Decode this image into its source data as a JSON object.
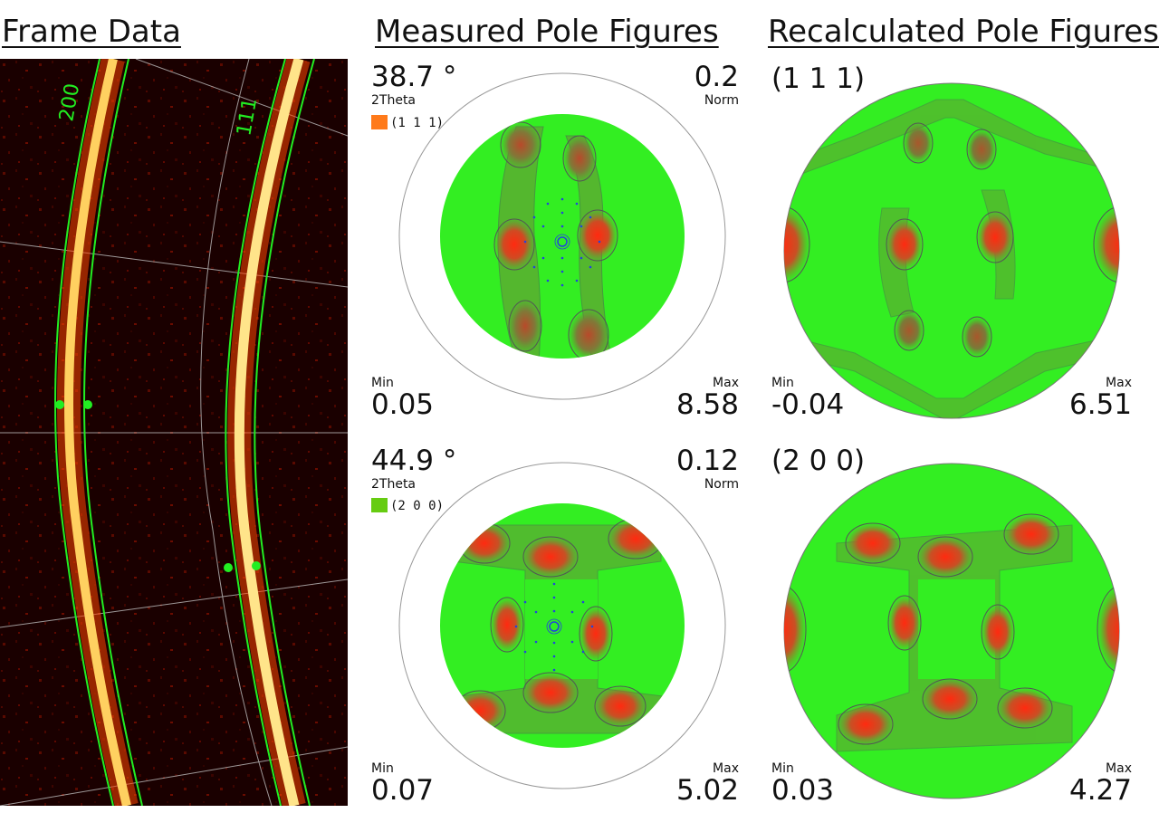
{
  "headings": {
    "frame": "Frame Data",
    "measured": "Measured Pole Figures",
    "recalculated": "Recalculated Pole Figures"
  },
  "frame": {
    "ring_labels": [
      "200",
      "111"
    ],
    "colors": {
      "background": "#1a0000",
      "ring": "#ffe070",
      "boundary": "#22ee22",
      "grid": "#bfbfbf"
    }
  },
  "measured": [
    {
      "two_theta": "38.7 °",
      "two_theta_label": "2Theta",
      "norm_value": "0.2",
      "norm_label": "Norm",
      "legend": "(1 1 1)",
      "legend_color": "#ff7a1a",
      "min_label": "Min",
      "min": "0.05",
      "max_label": "Max",
      "max": "8.58"
    },
    {
      "two_theta": "44.9 °",
      "two_theta_label": "2Theta",
      "norm_value": "0.12",
      "norm_label": "Norm",
      "legend": "(2 0 0)",
      "legend_color": "#66cc11",
      "min_label": "Min",
      "min": "0.07",
      "max_label": "Max",
      "max": "5.02"
    }
  ],
  "recalculated": [
    {
      "hkl": "(1 1 1)",
      "min_label": "Min",
      "min": "-0.04",
      "max_label": "Max",
      "max": "6.51"
    },
    {
      "hkl": "(2 0 0)",
      "min_label": "Min",
      "min": "0.03",
      "max_label": "Max",
      "max": "4.27"
    }
  ],
  "colors": {
    "pole_green": "#33ee22",
    "pole_hot": "#ff3311",
    "contour": "#555555",
    "scan_points": "#2244dd"
  }
}
